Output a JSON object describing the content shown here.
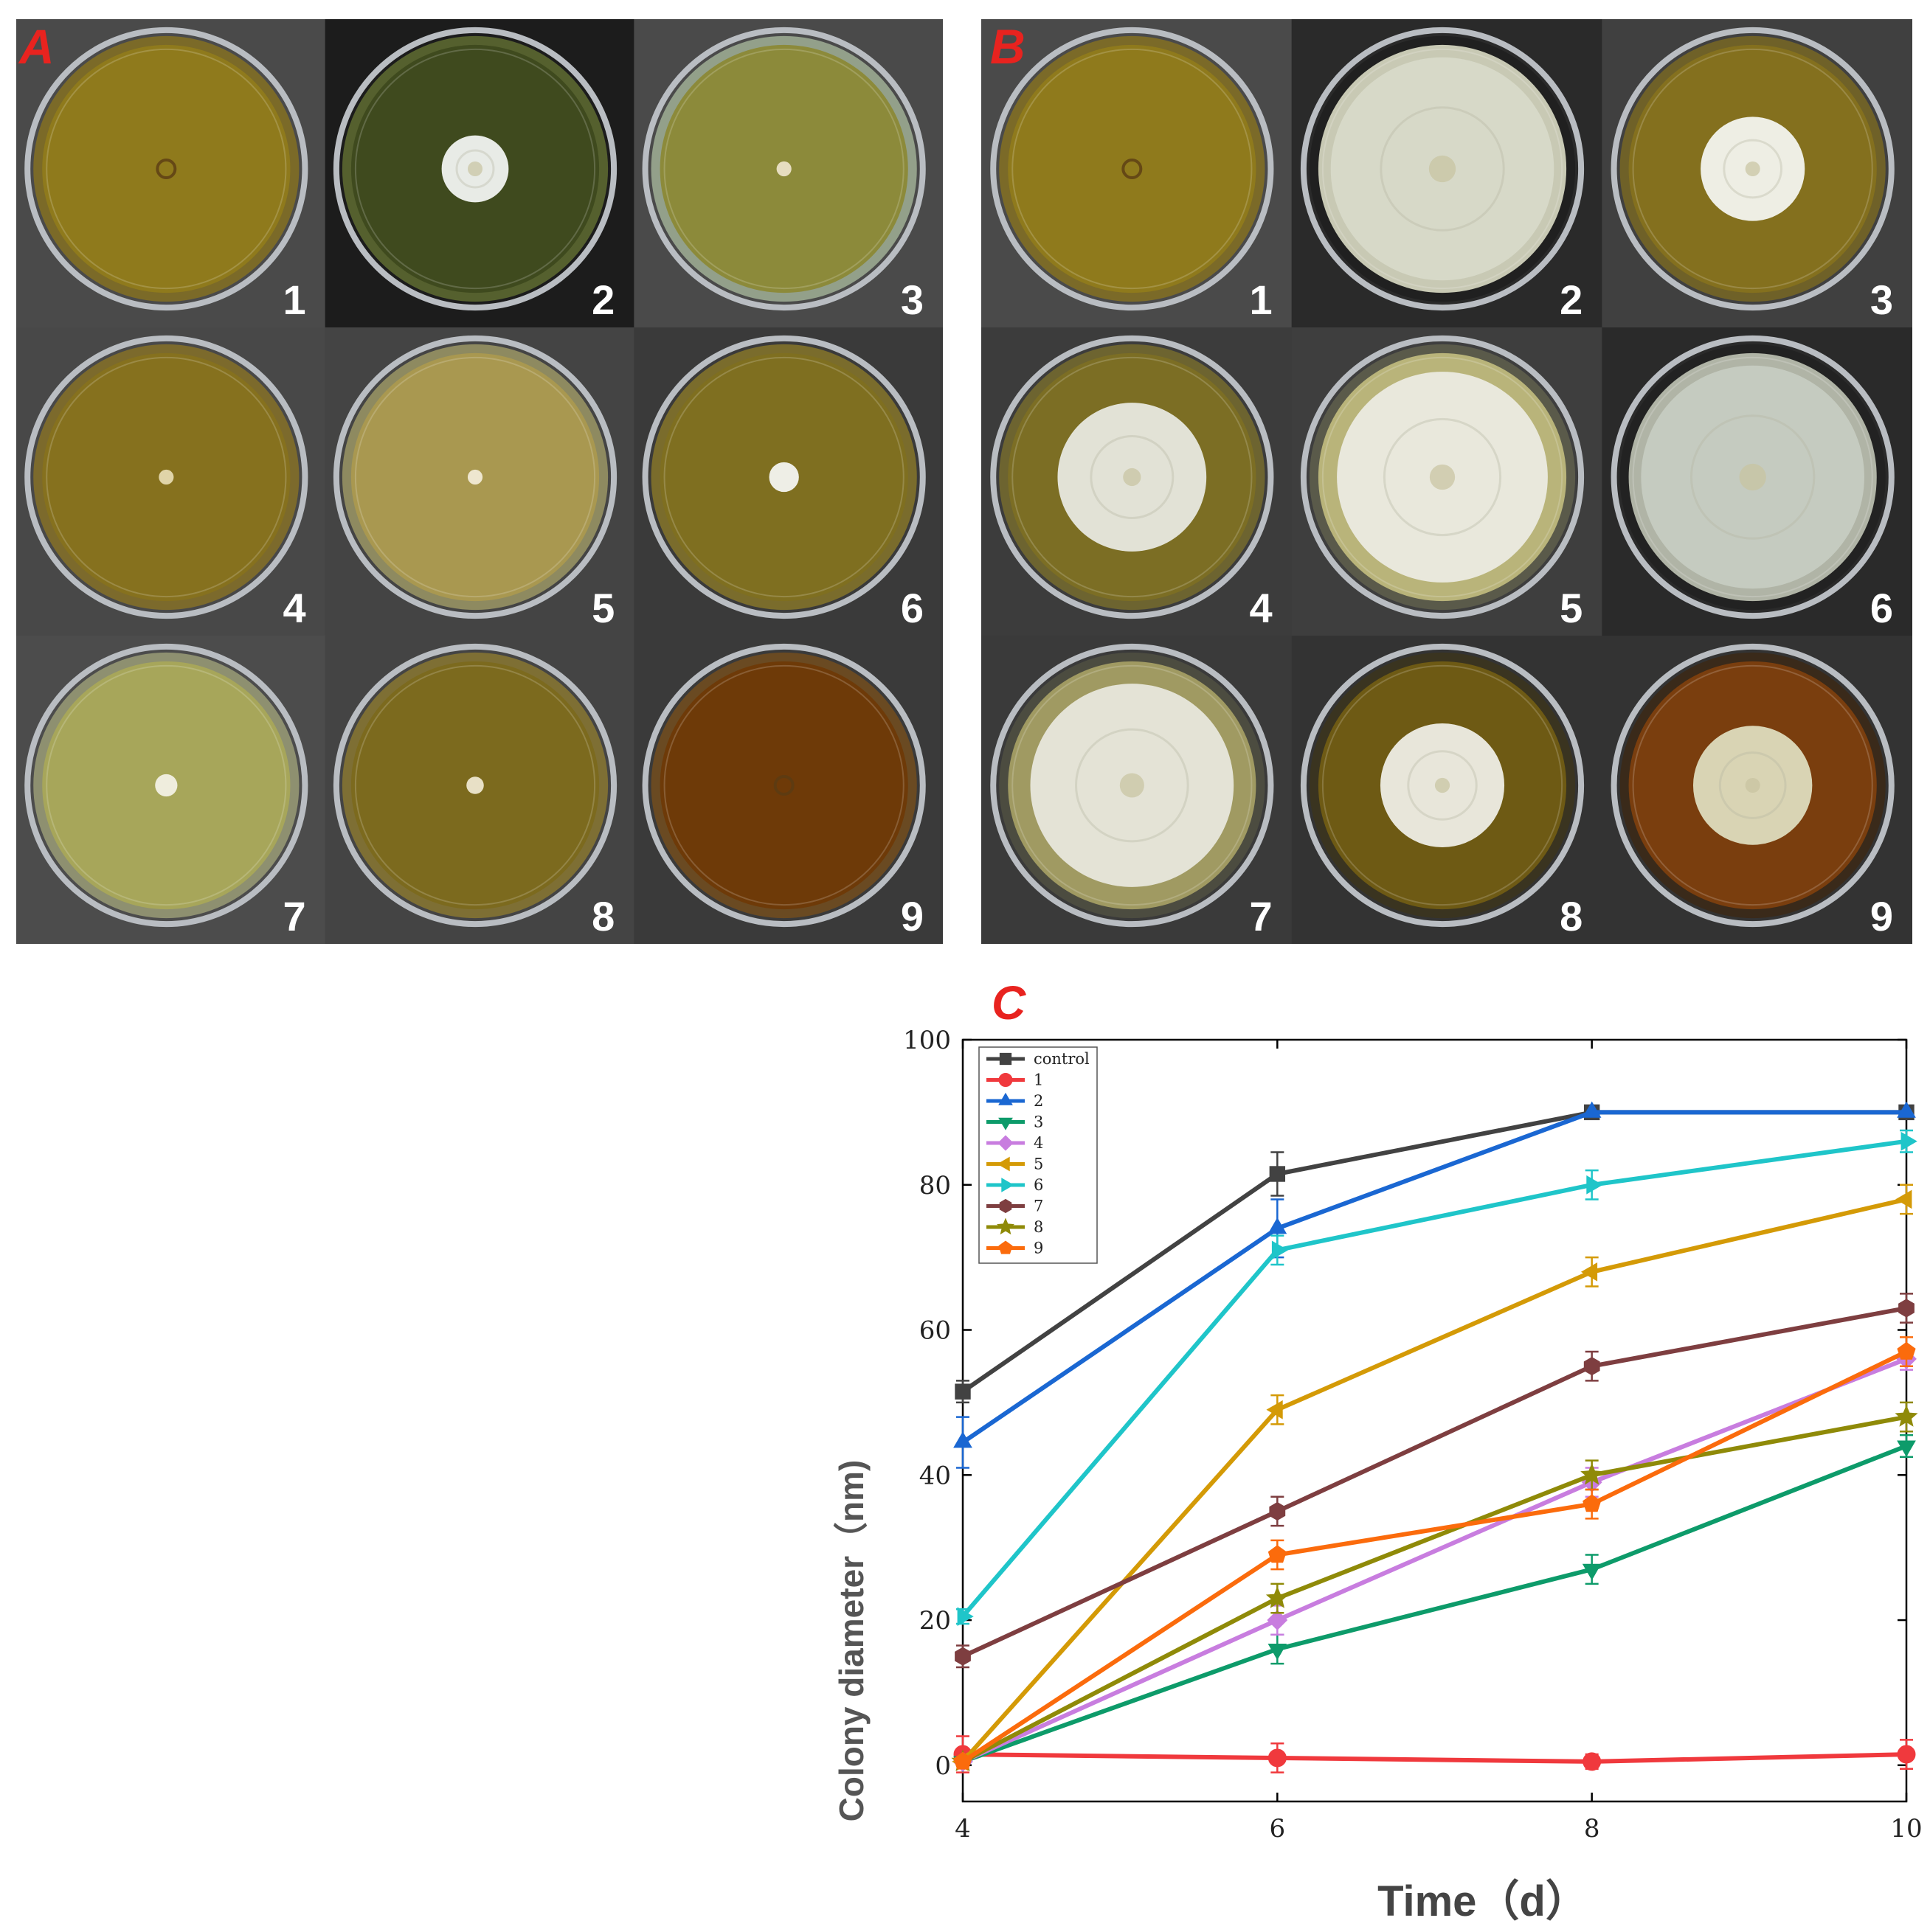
{
  "panel_a": {
    "letter": "A",
    "plates": [
      {
        "label": "1",
        "agar": "#8f7a1c",
        "rim": "#7b6a28",
        "bg": "#4a4a4a",
        "colony": 0.0,
        "colony_color": "#c8b070"
      },
      {
        "label": "2",
        "agar": "#3f4a1e",
        "rim": "#55602e",
        "bg": "#1c1c1c",
        "colony": 0.27,
        "colony_color": "#e8ebe6"
      },
      {
        "label": "3",
        "agar": "#8c8a3a",
        "rim": "#93a08a",
        "bg": "#4a4a4a",
        "colony": 0.06,
        "colony_color": "#e6ddc0"
      },
      {
        "label": "4",
        "agar": "#86711e",
        "rim": "#7c6a2c",
        "bg": "#484848",
        "colony": 0.06,
        "colony_color": "#e0d4a8"
      },
      {
        "label": "5",
        "agar": "#a99850",
        "rim": "#8e8a60",
        "bg": "#444444",
        "colony": 0.06,
        "colony_color": "#eee6cf"
      },
      {
        "label": "6",
        "agar": "#7f6f20",
        "rim": "#7a6c2c",
        "bg": "#3a3a3a",
        "colony": 0.12,
        "colony_color": "#eeeee6"
      },
      {
        "label": "7",
        "agar": "#a7a65a",
        "rim": "#8e9070",
        "bg": "#4c4c4c",
        "colony": 0.09,
        "colony_color": "#efeddd"
      },
      {
        "label": "8",
        "agar": "#7c6a1e",
        "rim": "#7e6f34",
        "bg": "#444444",
        "colony": 0.07,
        "colony_color": "#e8e0c6"
      },
      {
        "label": "9",
        "agar": "#6e3a08",
        "rim": "#6a4a22",
        "bg": "#3a3a3a",
        "colony": 0.0,
        "colony_color": "#c89a60"
      }
    ]
  },
  "panel_b": {
    "letter": "B",
    "plates": [
      {
        "label": "1",
        "agar": "#8f7a1c",
        "rim": "#7b6a28",
        "bg": "#4a4a4a",
        "colony": 0.0,
        "colony_color": "#c8b070"
      },
      {
        "label": "2",
        "agar": "#c8c9b4",
        "rim": "#202020",
        "bg": "#2a2a2a",
        "colony": 0.9,
        "colony_color": "#d7d9c8"
      },
      {
        "label": "3",
        "agar": "#84701e",
        "rim": "#6f6128",
        "bg": "#404040",
        "colony": 0.42,
        "colony_color": "#eeeee4"
      },
      {
        "label": "4",
        "agar": "#7c6e24",
        "rim": "#6d6430",
        "bg": "#3c3c3c",
        "colony": 0.6,
        "colony_color": "#e2e2d6"
      },
      {
        "label": "5",
        "agar": "#b9b47a",
        "rim": "#5a5a4a",
        "bg": "#3e3e3e",
        "colony": 0.85,
        "colony_color": "#e9e8dc"
      },
      {
        "label": "6",
        "agar": "#b0b4a6",
        "rim": "#222222",
        "bg": "#2a2a2a",
        "colony": 0.9,
        "colony_color": "#c5cbc0"
      },
      {
        "label": "7",
        "agar": "#a09a62",
        "rim": "#4c4c40",
        "bg": "#3a3a3a",
        "colony": 0.82,
        "colony_color": "#e4e3d6"
      },
      {
        "label": "8",
        "agar": "#6e5a14",
        "rim": "#3a3420",
        "bg": "#333333",
        "colony": 0.5,
        "colony_color": "#e8e6da"
      },
      {
        "label": "9",
        "agar": "#7a3e0e",
        "rim": "#3a2a1a",
        "bg": "#333333",
        "colony": 0.48,
        "colony_color": "#d9d4b4"
      }
    ]
  },
  "chart_data": {
    "panel_letter": "C",
    "type": "line",
    "x": [
      4,
      6,
      8,
      10
    ],
    "xlabel": "Time（d）",
    "ylabel": "Colony diameter（nm)",
    "xlim": [
      4,
      10
    ],
    "ylim": [
      -5,
      100
    ],
    "xticks": [
      "4",
      "6",
      "8",
      "10"
    ],
    "yticks": [
      "0",
      "20",
      "40",
      "60",
      "80",
      "100"
    ],
    "legend_position": "top-left",
    "grid": false,
    "series": [
      {
        "name": "control",
        "color": "#424242",
        "marker": "square",
        "values": [
          51.5,
          81.5,
          90,
          90
        ],
        "err": [
          1.5,
          3,
          0,
          0
        ]
      },
      {
        "name": "1",
        "color": "#f0393d",
        "marker": "circle",
        "values": [
          1.5,
          1,
          0.5,
          1.5
        ],
        "err": [
          2.5,
          2,
          1,
          2
        ]
      },
      {
        "name": "2",
        "color": "#1a67d2",
        "marker": "triangle-up",
        "values": [
          44.5,
          74,
          90,
          90
        ],
        "err": [
          3.5,
          4,
          0,
          0
        ]
      },
      {
        "name": "3",
        "color": "#0d9b6a",
        "marker": "triangle-down",
        "values": [
          0.5,
          16,
          27,
          44
        ],
        "err": [
          0.5,
          2,
          2,
          1.5
        ]
      },
      {
        "name": "4",
        "color": "#c87ddf",
        "marker": "diamond",
        "values": [
          0.5,
          20,
          39,
          56
        ],
        "err": [
          0.5,
          2,
          2,
          1.5
        ]
      },
      {
        "name": "5",
        "color": "#d49a06",
        "marker": "triangle-left",
        "values": [
          0.5,
          49,
          68,
          78
        ],
        "err": [
          0.5,
          2,
          2,
          2
        ]
      },
      {
        "name": "6",
        "color": "#1fc5c9",
        "marker": "triangle-right",
        "values": [
          20.5,
          71,
          80,
          86
        ],
        "err": [
          1,
          2,
          2,
          1.5
        ]
      },
      {
        "name": "7",
        "color": "#7e3e40",
        "marker": "hexagon",
        "values": [
          15,
          35,
          55,
          63
        ],
        "err": [
          1.5,
          2,
          2,
          2
        ]
      },
      {
        "name": "8",
        "color": "#8f8a08",
        "marker": "star",
        "values": [
          0.5,
          23,
          40,
          48
        ],
        "err": [
          0.5,
          2,
          2,
          2
        ]
      },
      {
        "name": "9",
        "color": "#fb6b0c",
        "marker": "pentagon",
        "values": [
          0.5,
          29,
          36,
          57
        ],
        "err": [
          0.5,
          2,
          2,
          2
        ]
      }
    ]
  }
}
